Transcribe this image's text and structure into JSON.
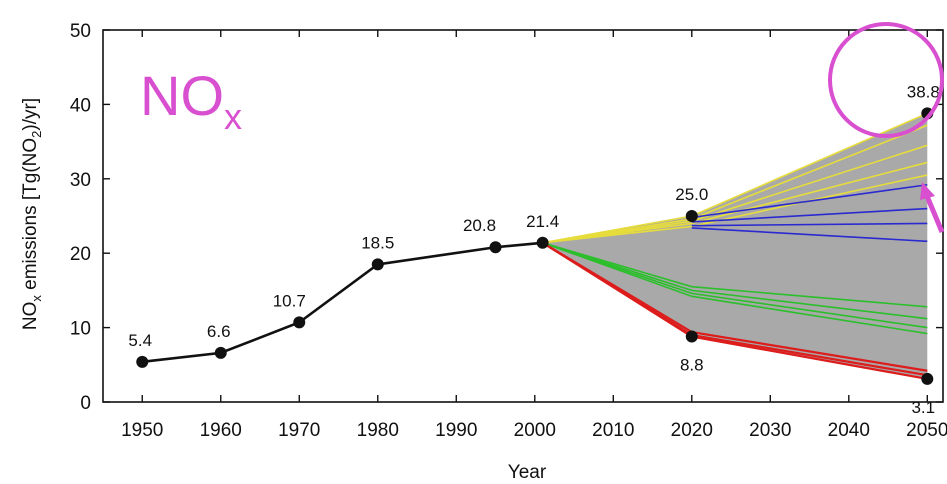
{
  "chart_data": {
    "type": "line",
    "xlabel": "Year",
    "ylabel_main": "NO",
    "ylabel_sub": "x",
    "ylabel_rest": " emissions [Tg(NO",
    "ylabel_sub2": "2",
    "ylabel_end": ")/yr]",
    "species_main": "NO",
    "species_sub": "x",
    "xlim": [
      1945,
      2052
    ],
    "ylim": [
      0,
      50
    ],
    "x_ticks": [
      1950,
      1960,
      1970,
      1980,
      1990,
      2000,
      2010,
      2020,
      2030,
      2040,
      2050
    ],
    "y_ticks": [
      0,
      10,
      20,
      30,
      40,
      50
    ],
    "historical": {
      "x": [
        1950,
        1960,
        1970,
        1980,
        1995,
        2001
      ],
      "y": [
        5.4,
        6.6,
        10.7,
        18.5,
        20.8,
        21.4
      ],
      "labels": [
        "5.4",
        "6.6",
        "10.7",
        "18.5",
        "20.8",
        "21.4"
      ]
    },
    "projection_points": [
      {
        "x": 2020,
        "y": 25.0,
        "label": "25.0",
        "pos": "above"
      },
      {
        "x": 2020,
        "y": 8.8,
        "label": "8.8",
        "pos": "below"
      },
      {
        "x": 2050,
        "y": 38.8,
        "label": "38.8",
        "pos": "above"
      },
      {
        "x": 2050,
        "y": 3.1,
        "label": "3.1",
        "pos": "below"
      }
    ],
    "envelope": {
      "x": [
        2001,
        2020,
        2050,
        2050,
        2020,
        2001
      ],
      "y": [
        21.4,
        25.0,
        38.8,
        3.1,
        8.8,
        21.4
      ]
    },
    "scenario_groups": [
      {
        "color": "#e6dc3c",
        "lines": [
          [
            [
              2001,
              21.4
            ],
            [
              2020,
              25.0
            ],
            [
              2050,
              38.8
            ]
          ],
          [
            [
              2001,
              21.4
            ],
            [
              2020,
              24.6
            ],
            [
              2050,
              37.2
            ]
          ],
          [
            [
              2001,
              21.4
            ],
            [
              2020,
              24.3
            ],
            [
              2050,
              34.5
            ]
          ],
          [
            [
              2001,
              21.4
            ],
            [
              2020,
              24.0
            ],
            [
              2050,
              32.2
            ]
          ],
          [
            [
              2001,
              21.4
            ],
            [
              2020,
              23.6
            ],
            [
              2050,
              30.5
            ]
          ]
        ]
      },
      {
        "color": "#2a2ad0",
        "lines": [
          [
            [
              2020,
              24.8
            ],
            [
              2050,
              29.2
            ]
          ],
          [
            [
              2020,
              24.2
            ],
            [
              2050,
              26.0
            ]
          ],
          [
            [
              2020,
              23.7
            ],
            [
              2050,
              24.0
            ]
          ],
          [
            [
              2020,
              23.4
            ],
            [
              2050,
              21.6
            ]
          ]
        ]
      },
      {
        "color": "#2bbf2b",
        "lines": [
          [
            [
              2001,
              21.4
            ],
            [
              2020,
              15.5
            ],
            [
              2050,
              12.8
            ]
          ],
          [
            [
              2001,
              21.4
            ],
            [
              2020,
              15.0
            ],
            [
              2050,
              11.2
            ]
          ],
          [
            [
              2001,
              21.4
            ],
            [
              2020,
              14.6
            ],
            [
              2050,
              10.0
            ]
          ],
          [
            [
              2001,
              21.4
            ],
            [
              2020,
              14.2
            ],
            [
              2050,
              9.2
            ]
          ]
        ]
      },
      {
        "color": "#dd1c1c",
        "lines": [
          [
            [
              2001,
              21.4
            ],
            [
              2020,
              9.4
            ],
            [
              2050,
              4.2
            ]
          ],
          [
            [
              2001,
              21.4
            ],
            [
              2020,
              9.0
            ],
            [
              2050,
              3.6
            ]
          ],
          [
            [
              2001,
              21.4
            ],
            [
              2020,
              8.8
            ],
            [
              2050,
              3.1
            ]
          ]
        ]
      }
    ],
    "colors": {
      "envelope": "#a9a9a9",
      "historical": "#111111",
      "highlight": "#d84fd0"
    },
    "grid": false
  }
}
